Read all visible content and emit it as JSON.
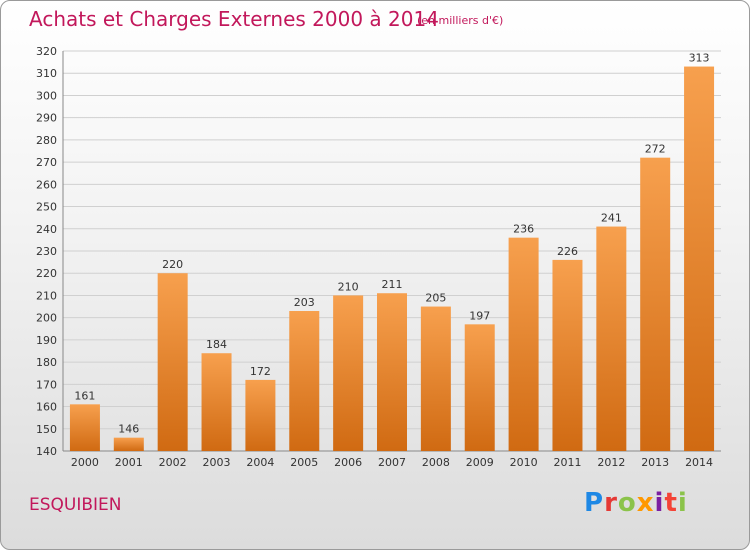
{
  "header": {
    "title": "Achats et Charges Externes 2000 à 2014",
    "subtitle": "(en milliers d'€)"
  },
  "footer": {
    "commune": "ESQUIBIEN",
    "logo_letters": [
      "P",
      "r",
      "o",
      "x",
      "i",
      "t",
      "i"
    ]
  },
  "colors": {
    "bar_top": "#f7a04e",
    "bar_bottom": "#d06a12",
    "title": "#c2185b",
    "grid": "#d0d0d0"
  },
  "chart_data": {
    "type": "bar",
    "categories": [
      "2000",
      "2001",
      "2002",
      "2003",
      "2004",
      "2005",
      "2006",
      "2007",
      "2008",
      "2009",
      "2010",
      "2011",
      "2012",
      "2013",
      "2014"
    ],
    "values": [
      161,
      146,
      220,
      184,
      172,
      203,
      210,
      211,
      205,
      197,
      236,
      226,
      241,
      272,
      313
    ],
    "ylim": [
      140,
      320
    ],
    "yticks": [
      140,
      150,
      160,
      170,
      180,
      190,
      200,
      210,
      220,
      230,
      240,
      250,
      260,
      270,
      280,
      290,
      300,
      310,
      320
    ],
    "grid": true,
    "legend": "none"
  }
}
